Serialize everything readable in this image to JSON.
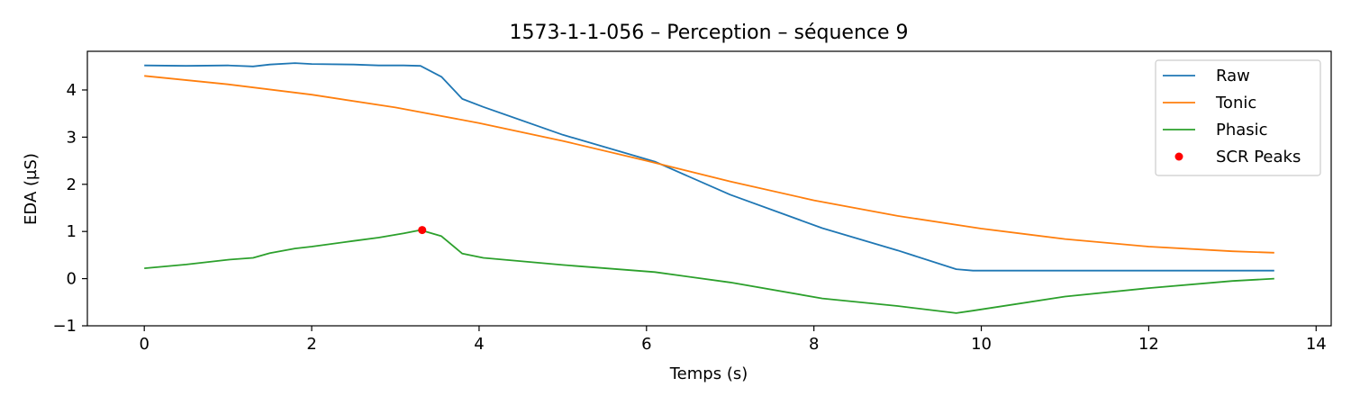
{
  "chart_data": {
    "type": "line",
    "title": "1573-1-1-056 – Perception – séquence 9",
    "xlabel": "Temps (s)",
    "ylabel": "EDA (µS)",
    "xlim": [
      -0.68,
      14.18
    ],
    "ylim": [
      -1.0,
      4.82
    ],
    "xticks": [
      0,
      2,
      4,
      6,
      8,
      10,
      12,
      14
    ],
    "xtick_labels": [
      "0",
      "2",
      "4",
      "6",
      "8",
      "10",
      "12",
      "14"
    ],
    "yticks": [
      -1,
      0,
      1,
      2,
      3,
      4
    ],
    "ytick_labels": [
      "−1",
      "0",
      "1",
      "2",
      "3",
      "4"
    ],
    "grid": false,
    "legend_position": "top-right",
    "series": [
      {
        "name": "Raw",
        "color": "#1f77b4",
        "x": [
          0,
          0.5,
          1.0,
          1.3,
          1.5,
          1.8,
          2.0,
          2.5,
          2.8,
          3.1,
          3.3,
          3.55,
          3.8,
          4.05,
          5.0,
          6.1,
          7.0,
          8.1,
          9.0,
          9.7,
          9.9,
          11.0,
          12.0,
          13.0,
          13.5
        ],
        "values": [
          4.52,
          4.51,
          4.52,
          4.5,
          4.54,
          4.57,
          4.55,
          4.54,
          4.52,
          4.52,
          4.51,
          4.28,
          3.81,
          3.64,
          3.05,
          2.48,
          1.78,
          1.07,
          0.6,
          0.2,
          0.17,
          0.17,
          0.17,
          0.17,
          0.17
        ]
      },
      {
        "name": "Tonic",
        "color": "#ff7f0e",
        "x": [
          0,
          1,
          2,
          3,
          4,
          5,
          6,
          7,
          8,
          9,
          10,
          11,
          12,
          13,
          13.5
        ],
        "values": [
          4.3,
          4.12,
          3.9,
          3.63,
          3.3,
          2.92,
          2.5,
          2.06,
          1.66,
          1.33,
          1.06,
          0.84,
          0.68,
          0.58,
          0.55
        ]
      },
      {
        "name": "Phasic",
        "color": "#2ca02c",
        "x": [
          0,
          0.5,
          1.0,
          1.3,
          1.5,
          1.8,
          2.0,
          2.5,
          2.8,
          3.1,
          3.3,
          3.55,
          3.8,
          4.05,
          5.0,
          6.1,
          7.0,
          8.1,
          9.0,
          9.7,
          9.9,
          11.0,
          12.0,
          13.0,
          13.5
        ],
        "values": [
          0.22,
          0.3,
          0.4,
          0.44,
          0.54,
          0.64,
          0.68,
          0.8,
          0.87,
          0.96,
          1.03,
          0.9,
          0.53,
          0.44,
          0.29,
          0.14,
          -0.08,
          -0.42,
          -0.58,
          -0.73,
          -0.68,
          -0.38,
          -0.2,
          -0.05,
          0.0
        ]
      }
    ],
    "peaks": {
      "name": "SCR Peaks",
      "color": "#ff0000",
      "x": [
        3.32
      ],
      "values": [
        1.03
      ]
    }
  }
}
